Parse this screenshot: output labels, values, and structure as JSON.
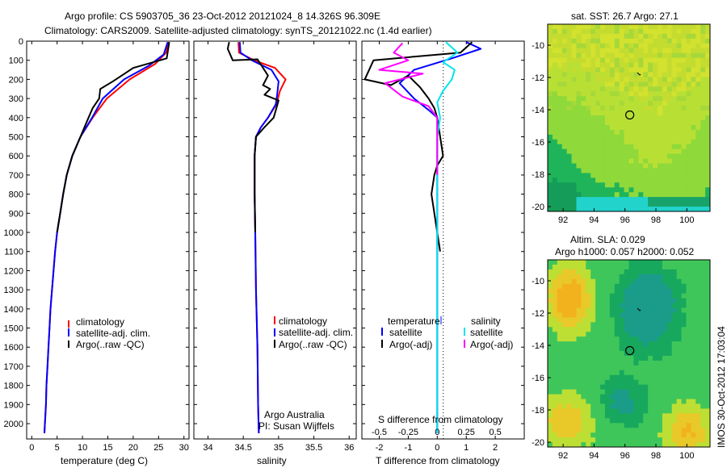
{
  "title": {
    "line1": "Argo profile: CS 5903705_36 23-Oct-2012 20121024_8 14.326S 96.309E",
    "line2": "Climatology: CARS2009. Satellite-adjusted climatology: synTS_20121022.nc (1.4d earlier)"
  },
  "depth_ticks": [
    0,
    100,
    200,
    300,
    400,
    500,
    600,
    700,
    800,
    900,
    1000,
    1100,
    1200,
    1300,
    1400,
    1500,
    1600,
    1700,
    1800,
    1900,
    2000
  ],
  "colors": {
    "climatology": "#ff0000",
    "satellite": "#0000ff",
    "argo": "#000000",
    "sal_diff": "#ff00ff",
    "sal_sat": "#00e5ee"
  },
  "chart_data": [
    {
      "type": "line",
      "id": "temperature",
      "xlabel": "temperature (deg C)",
      "xlim": [
        -1,
        31
      ],
      "xticks": [
        0,
        5,
        10,
        15,
        20,
        25,
        30
      ],
      "ylim": [
        2080,
        0
      ],
      "legend": [
        "climatology",
        "satellite-adj. clim.",
        "Argo(..raw -QC)"
      ],
      "series": [
        {
          "name": "climatology",
          "points": [
            [
              27,
              5
            ],
            [
              26.5,
              60
            ],
            [
              24.3,
              120
            ],
            [
              19.3,
              200
            ],
            [
              14.8,
              300
            ],
            [
              12,
              400
            ],
            [
              9.6,
              500
            ],
            [
              8,
              600
            ],
            [
              6.9,
              700
            ],
            [
              6.2,
              800
            ],
            [
              5.6,
              900
            ],
            [
              5,
              1000
            ],
            [
              4.6,
              1100
            ],
            [
              4.3,
              1200
            ],
            [
              4,
              1300
            ],
            [
              3.7,
              1400
            ],
            [
              3.5,
              1500
            ],
            [
              3.3,
              1600
            ],
            [
              3.1,
              1700
            ],
            [
              2.9,
              1800
            ],
            [
              2.8,
              1900
            ],
            [
              2.6,
              2000
            ],
            [
              2.5,
              2050
            ]
          ]
        },
        {
          "name": "satellite-adj. clim.",
          "points": [
            [
              26.8,
              5
            ],
            [
              26,
              70
            ],
            [
              23,
              130
            ],
            [
              18.2,
              200
            ],
            [
              14,
              300
            ],
            [
              11.9,
              400
            ],
            [
              9.6,
              500
            ],
            [
              8,
              600
            ],
            [
              6.9,
              700
            ],
            [
              6.2,
              800
            ],
            [
              5.6,
              900
            ],
            [
              5,
              1000
            ],
            [
              4.6,
              1100
            ],
            [
              4.3,
              1200
            ],
            [
              4,
              1300
            ],
            [
              3.7,
              1400
            ],
            [
              3.5,
              1500
            ],
            [
              3.3,
              1600
            ],
            [
              3.1,
              1700
            ],
            [
              2.9,
              1800
            ],
            [
              2.8,
              1900
            ],
            [
              2.6,
              2000
            ],
            [
              2.5,
              2050
            ]
          ]
        },
        {
          "name": "Argo(..raw -QC)",
          "points": [
            [
              27.1,
              5
            ],
            [
              26.6,
              90
            ],
            [
              20,
              140
            ],
            [
              18.3,
              170
            ],
            [
              16,
              210
            ],
            [
              13.5,
              250
            ],
            [
              13.3,
              300
            ],
            [
              12,
              350
            ],
            [
              11.2,
              400
            ],
            [
              9.6,
              500
            ],
            [
              8,
              600
            ],
            [
              6.9,
              700
            ],
            [
              6.2,
              800
            ],
            [
              5.6,
              900
            ],
            [
              5,
              1000
            ]
          ]
        }
      ]
    },
    {
      "type": "line",
      "id": "salinity",
      "xlabel": "salinity",
      "xlim": [
        33.8,
        36.1
      ],
      "xticks": [
        34,
        34.5,
        35,
        35.5,
        36
      ],
      "ylim": [
        2080,
        0
      ],
      "legend": [
        "climatology",
        "satellite-adj. clim.",
        "Argo(..raw -QC)"
      ],
      "annotations": [
        "Argo Australia",
        "PI: Susan Wijffels"
      ],
      "series": [
        {
          "name": "climatology",
          "points": [
            [
              34.43,
              5
            ],
            [
              34.44,
              60
            ],
            [
              34.65,
              100
            ],
            [
              34.95,
              140
            ],
            [
              35.1,
              200
            ],
            [
              35.02,
              260
            ],
            [
              34.97,
              330
            ],
            [
              34.85,
              400
            ],
            [
              34.75,
              450
            ],
            [
              34.68,
              500
            ],
            [
              34.66,
              600
            ],
            [
              34.66,
              800
            ],
            [
              34.67,
              1000
            ],
            [
              34.68,
              1300
            ],
            [
              34.7,
              1600
            ],
            [
              34.71,
              1900
            ],
            [
              34.72,
              2050
            ]
          ]
        },
        {
          "name": "satellite-adj. clim.",
          "points": [
            [
              34.45,
              5
            ],
            [
              34.46,
              60
            ],
            [
              34.62,
              100
            ],
            [
              34.9,
              150
            ],
            [
              35.0,
              210
            ],
            [
              34.98,
              280
            ],
            [
              34.96,
              330
            ],
            [
              34.85,
              400
            ],
            [
              34.75,
              450
            ],
            [
              34.68,
              500
            ],
            [
              34.66,
              600
            ],
            [
              34.66,
              800
            ],
            [
              34.67,
              1000
            ],
            [
              34.68,
              1300
            ],
            [
              34.7,
              1600
            ],
            [
              34.71,
              1900
            ],
            [
              34.72,
              2050
            ]
          ]
        },
        {
          "name": "Argo(..raw -QC)",
          "points": [
            [
              34.3,
              5
            ],
            [
              34.28,
              40
            ],
            [
              34.35,
              100
            ],
            [
              34.7,
              95
            ],
            [
              34.85,
              180
            ],
            [
              34.78,
              230
            ],
            [
              34.88,
              250
            ],
            [
              34.8,
              280
            ],
            [
              35.0,
              310
            ],
            [
              34.93,
              400
            ],
            [
              34.8,
              450
            ],
            [
              34.68,
              500
            ],
            [
              34.66,
              600
            ],
            [
              34.66,
              800
            ],
            [
              34.67,
              1000
            ]
          ]
        }
      ]
    },
    {
      "type": "line",
      "id": "difference",
      "xlabel_bottom": "T difference from climatology",
      "xlabel_top": "S difference from climatology",
      "t_xlim": [
        -2.6,
        3.0
      ],
      "t_xticks": [
        -2,
        -1,
        0,
        1,
        2
      ],
      "s_ticklabels": [
        "-0.5",
        "-0.25",
        "0",
        "0.25",
        "0.5"
      ],
      "s_tick_tvalues": [
        -2,
        -1,
        0,
        1,
        2
      ],
      "ylim": [
        2080,
        0
      ],
      "legend_temperature": {
        "title": "temperature",
        "items": [
          "satellite",
          "Argo(-adj)"
        ]
      },
      "legend_salinity": {
        "title": "salinity",
        "items": [
          "satellite",
          "Argo(-adj)"
        ]
      },
      "series": [
        {
          "name": "temperature satellite",
          "points": [
            [
              1.0,
              5
            ],
            [
              1.5,
              40
            ],
            [
              0.5,
              90
            ],
            [
              -0.8,
              150
            ],
            [
              -1.3,
              220
            ],
            [
              -0.8,
              300
            ],
            [
              -0.3,
              360
            ],
            [
              0,
              400
            ],
            [
              0,
              600
            ],
            [
              0,
              1000
            ],
            [
              0,
              2050
            ]
          ]
        },
        {
          "name": "temperature Argo(-adj)",
          "points": [
            [
              1.2,
              5
            ],
            [
              0.8,
              60
            ],
            [
              -2.2,
              100
            ],
            [
              -2.5,
              200
            ],
            [
              -1.6,
              230
            ],
            [
              -1.0,
              180
            ],
            [
              -0.6,
              240
            ],
            [
              -0.3,
              300
            ],
            [
              -0.1,
              350
            ],
            [
              0,
              400
            ],
            [
              0.1,
              500
            ],
            [
              0.2,
              600
            ],
            [
              0,
              650
            ],
            [
              -0.1,
              700
            ],
            [
              -0.2,
              800
            ],
            [
              -0.1,
              900
            ],
            [
              0,
              1000
            ],
            [
              0.1,
              1100
            ]
          ]
        },
        {
          "name": "salinity satellite",
          "points": [
            [
              0.3,
              5
            ],
            [
              0.7,
              60
            ],
            [
              0.2,
              110
            ],
            [
              0.6,
              150
            ],
            [
              0.5,
              200
            ],
            [
              0.2,
              260
            ],
            [
              0,
              320
            ],
            [
              0.1,
              400
            ],
            [
              0,
              500
            ],
            [
              0,
              1000
            ],
            [
              0,
              2050
            ]
          ]
        },
        {
          "name": "salinity Argo(-adj)",
          "points": [
            [
              -1.2,
              10
            ],
            [
              -1.5,
              60
            ],
            [
              -1.0,
              100
            ],
            [
              -2.0,
              150
            ],
            [
              -0.5,
              170
            ],
            [
              -1.8,
              220
            ],
            [
              -1.2,
              290
            ],
            [
              -0.3,
              340
            ],
            [
              0,
              400
            ],
            [
              0,
              500
            ],
            [
              0,
              700
            ]
          ]
        }
      ]
    },
    {
      "type": "heatmap",
      "id": "sst_map",
      "title": "sat. SST: 26.7 Argo: 27.1",
      "xticks": [
        92,
        94,
        96,
        98,
        100
      ],
      "yticks": [
        -10,
        -12,
        -14,
        -16,
        -18,
        -20
      ],
      "xlim": [
        91,
        101.5
      ],
      "ylim": [
        -20.3,
        -8.7
      ],
      "marker": {
        "lon": 96.309,
        "lat": -14.326
      }
    },
    {
      "type": "heatmap",
      "id": "sla_map",
      "title": "Altim. SLA: 0.029",
      "subtitle": "Argo h1000: 0.057 h2000: 0.052",
      "xticks": [
        92,
        94,
        96,
        98,
        100
      ],
      "yticks": [
        -10,
        -12,
        -14,
        -16,
        -18,
        -20
      ],
      "xlim": [
        91,
        101.5
      ],
      "ylim": [
        -20.3,
        -8.7
      ],
      "marker": {
        "lon": 96.309,
        "lat": -14.326
      }
    }
  ],
  "footer": "IMOS 30-Oct-2012 17:03:04"
}
